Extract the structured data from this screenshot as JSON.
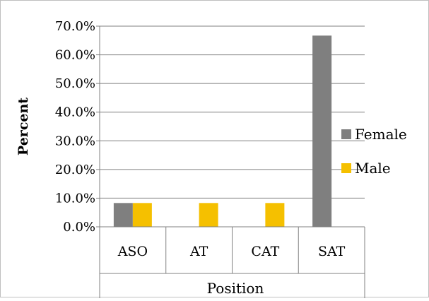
{
  "chart_data": {
    "type": "bar",
    "title": "",
    "xlabel": "Position",
    "ylabel": "Percent",
    "categories": [
      "ASO",
      "AT",
      "CAT",
      "SAT"
    ],
    "series": [
      {
        "name": "Female",
        "color": "#7f7f7f",
        "values": [
          8.3,
          0.0,
          0.0,
          66.7
        ]
      },
      {
        "name": "Male",
        "color": "#f5c000",
        "values": [
          8.3,
          8.3,
          8.3,
          0.0
        ]
      }
    ],
    "ylim": [
      0,
      70
    ],
    "yticks": [
      "0.0%",
      "10.0%",
      "20.0%",
      "30.0%",
      "40.0%",
      "50.0%",
      "60.0%",
      "70.0%"
    ],
    "grid": true,
    "legend_position": "right"
  }
}
